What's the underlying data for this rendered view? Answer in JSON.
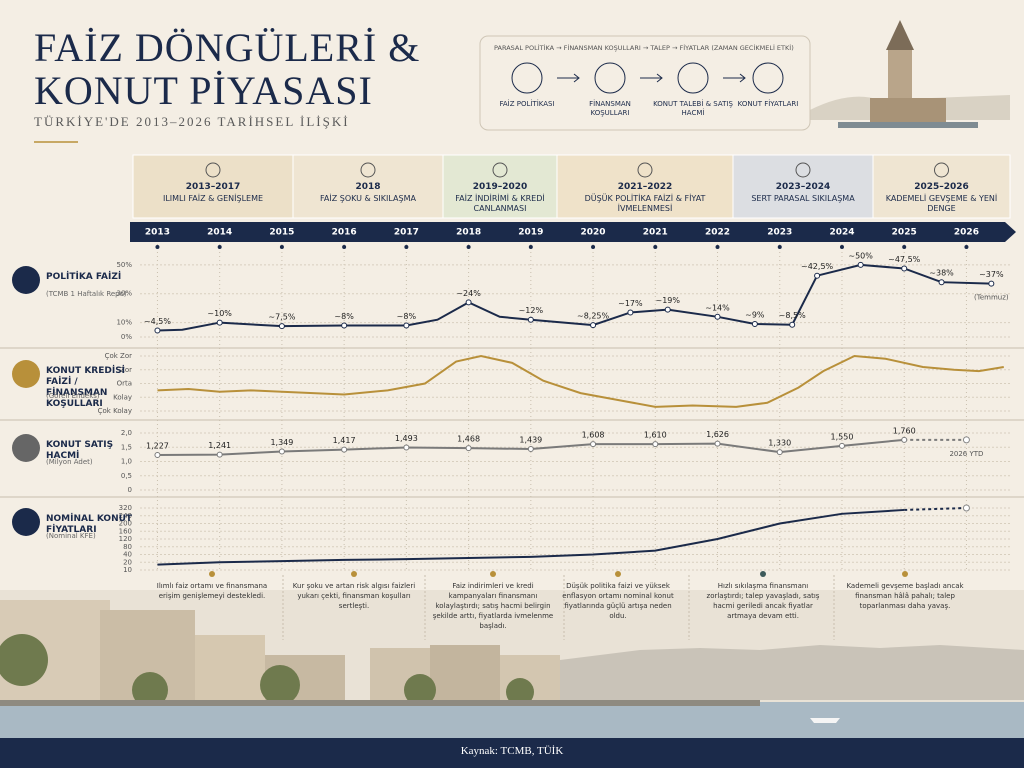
{
  "header": {
    "title_lines": [
      "FAİZ DÖNGÜLERİ &",
      "KONUT PİYASASI"
    ],
    "subtitle": "TÜRKİYE'DE 2013–2026 TARİHSEL İLİŞKİ"
  },
  "flow": {
    "caption": "PARASAL POLİTİKA → FİNANSMAN KOŞULLARI → TALEP → FİYATLAR (ZAMAN GECİKMELİ ETKİ)",
    "steps": [
      "FAİZ POLİTİKASI",
      "FİNANSMAN KOŞULLARI",
      "KONUT TALEBİ & SATIŞ HACMİ",
      "KONUT FİYATLARI"
    ]
  },
  "phases": [
    {
      "period": "2013–2017",
      "label": "ILIMLI FAİZ & GENİŞLEME",
      "color": "#ece0c8"
    },
    {
      "period": "2018",
      "label": "FAİZ ŞOKU & SIKILAŞMA",
      "color": "#efe5d2"
    },
    {
      "period": "2019–2020",
      "label": "FAİZ İNDİRİMİ & KREDİ CANLANMASI",
      "color": "#e3e8d3"
    },
    {
      "period": "2021–2022",
      "label": "DÜŞÜK POLİTİKA FAİZİ & FİYAT İVMELENMESİ",
      "color": "#efe2c9"
    },
    {
      "period": "2023–2024",
      "label": "SERT PARASAL SIKILAŞMA",
      "color": "#dcdee2"
    },
    {
      "period": "2025–2026",
      "label": "KADEMELİ GEVŞEME & YENİ DENGE",
      "color": "#efe5d2"
    }
  ],
  "timeline": {
    "xlim": [
      2012.8,
      2026.7
    ],
    "xticks": [
      2013,
      2014,
      2015,
      2016,
      2017,
      2018,
      2019,
      2020,
      2021,
      2022,
      2023,
      2024,
      2025,
      2026
    ]
  },
  "chart_data": [
    {
      "type": "line",
      "title": "POLİTİKA FAİZİ",
      "subtitle": "(TCMB 1 Haftalık Repo)",
      "color": "#1b2a4a",
      "markers": true,
      "annotation": "(Temmuz)",
      "ylim": [
        0,
        52
      ],
      "yticks": [
        {
          "value": 0,
          "label": "0%"
        },
        {
          "value": 10,
          "label": "10%"
        },
        {
          "value": 30,
          "label": "30%"
        },
        {
          "value": 50,
          "label": "50%"
        }
      ],
      "x": [
        2013,
        2013.4,
        2014,
        2015,
        2016,
        2017,
        2017.5,
        2018,
        2018.5,
        2019,
        2020,
        2020.6,
        2021.2,
        2022,
        2022.6,
        2023.2,
        2023.6,
        2024.3,
        2025,
        2025.6,
        2026.4
      ],
      "values": [
        4.5,
        5,
        10,
        7.5,
        8,
        8,
        12,
        24,
        14,
        12,
        8.25,
        17,
        19,
        14,
        9,
        8.5,
        42.5,
        50,
        47.5,
        38,
        37
      ],
      "value_labels": [
        "~4,5%",
        null,
        "~10%",
        "~7,5%",
        "~8%",
        "~8%",
        null,
        "~24%",
        null,
        "~12%",
        "~8,25%",
        "~17%",
        "~19%",
        "~14%",
        "~9%",
        "~8,5%",
        "~42,5%",
        "~50%",
        "~47,5%",
        "~38%",
        "~37%"
      ]
    },
    {
      "type": "line",
      "title": "KONUT KREDİSİ FAİZİ / FİNANSMAN KOŞULLARI",
      "subtitle": "(Göreli Endeks)",
      "color": "#b8903a",
      "ylim": [
        1,
        5
      ],
      "yticks": [
        {
          "value": 1,
          "label": "Çok Kolay"
        },
        {
          "value": 2,
          "label": "Kolay"
        },
        {
          "value": 3,
          "label": "Orta"
        },
        {
          "value": 4,
          "label": "Zor"
        },
        {
          "value": 5,
          "label": "Çok Zor"
        }
      ],
      "x": [
        2013,
        2013.5,
        2014,
        2014.5,
        2015,
        2016,
        2016.7,
        2017.3,
        2017.8,
        2018.2,
        2018.7,
        2019.2,
        2019.8,
        2020.4,
        2021,
        2021.6,
        2022.3,
        2022.8,
        2023.3,
        2023.7,
        2024.2,
        2024.7,
        2025.3,
        2025.8,
        2026.2,
        2026.6
      ],
      "values": [
        2.5,
        2.6,
        2.4,
        2.5,
        2.4,
        2.2,
        2.5,
        3,
        4.6,
        5,
        4.5,
        3.2,
        2.3,
        1.8,
        1.3,
        1.4,
        1.3,
        1.6,
        2.7,
        3.9,
        5,
        4.8,
        4.2,
        4,
        3.9,
        4.2
      ]
    },
    {
      "type": "line",
      "title": "KONUT SATIŞ HACMİ",
      "subtitle": "(Milyon Adet)",
      "color": "#7a7a7a",
      "markers": true,
      "dashed_last": true,
      "annotation": "2026 YTD",
      "ylim": [
        0,
        2
      ],
      "yticks": [
        0,
        {
          "value": 0.5,
          "label": "0,5"
        },
        {
          "value": 1,
          "label": "1,0"
        },
        {
          "value": 1.5,
          "label": "1,5"
        },
        {
          "value": 2,
          "label": "2,0"
        }
      ],
      "x": [
        2013,
        2014,
        2015,
        2016,
        2017,
        2018,
        2019,
        2020,
        2021,
        2022,
        2023,
        2024,
        2025,
        2026
      ],
      "values": [
        1.227,
        1.241,
        1.349,
        1.417,
        1.493,
        1.468,
        1.439,
        1.608,
        1.61,
        1.626,
        1.33,
        1.55,
        1.76,
        1.76
      ],
      "value_labels": [
        "1,227",
        "1,241",
        "1,349",
        "1,417",
        "1,493",
        "1,468",
        "1,439",
        "1,608",
        "1,610",
        "1,626",
        "1,330",
        "1,550",
        "1,760",
        null
      ]
    },
    {
      "type": "line",
      "title": "NOMİNAL KONUT FİYATLARI",
      "subtitle": "(Nominal KFE)",
      "color": "#1b2a4a",
      "dashed_last": true,
      "yscale": "tick-spaced",
      "ylim": [
        10,
        320
      ],
      "yticks": [
        10,
        20,
        40,
        80,
        120,
        160,
        200,
        240,
        320
      ],
      "x": [
        2013,
        2014,
        2015,
        2016,
        2017,
        2018,
        2019,
        2020,
        2021,
        2022,
        2023,
        2024,
        2025,
        2026
      ],
      "values": [
        17,
        20,
        23,
        26,
        28,
        31,
        34,
        40,
        60,
        120,
        200,
        260,
        300,
        320
      ]
    }
  ],
  "notes": [
    {
      "text": "Ilımlı faiz ortamı ve finansmana erişim genişlemeyi destekledi.",
      "color": "#b8903a"
    },
    {
      "text": "Kur şoku ve artan risk algısı faizleri yukarı çekti, finansman koşulları sertleşti.",
      "color": "#b8903a"
    },
    {
      "text": "Faiz indirimleri ve kredi kampanyaları finansmanı kolaylaştırdı; satış hacmi belirgin şekilde arttı, fiyatlarda ivmelenme başladı.",
      "color": "#b8903a"
    },
    {
      "text": "Düşük politika faizi ve yüksek enflasyon ortamı nominal konut fiyatlarında güçlü artışa neden oldu.",
      "color": "#b8903a"
    },
    {
      "text": "Hızlı sıkılaşma finansmanı zorlaştırdı; talep yavaşladı, satış hacmi geriledi ancak fiyatlar artmaya devam etti.",
      "color": "#3d5a5a"
    },
    {
      "text": "Kademeli gevşeme başladı ancak finansman hâlâ pahalı; talep toparlanması daha yavaş.",
      "color": "#b8903a"
    }
  ],
  "source": "Kaynak: TCMB, TÜİK"
}
